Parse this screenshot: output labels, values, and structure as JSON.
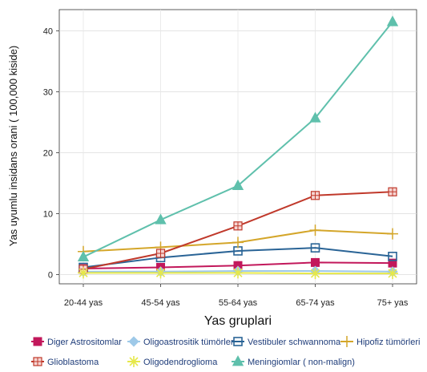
{
  "chart_data": {
    "type": "line",
    "title": "",
    "xlabel": "Yas gruplari",
    "ylabel": "Yas uyumlu insidans orani ( 100,000 kiside)",
    "categories": [
      "20-44 yas",
      "45-54 yas",
      "55-64 yas",
      "65-74 yas",
      "75+ yas"
    ],
    "y_ticks": [
      0,
      10,
      20,
      30,
      40
    ],
    "ylim": [
      -1.5,
      43.5
    ],
    "grid": true,
    "legend_position": "bottom",
    "series": [
      {
        "name": "Diger Astrositomlar",
        "color": "#c2185b",
        "marker": "square-filled",
        "values": [
          1.0,
          1.2,
          1.5,
          2.0,
          1.9
        ]
      },
      {
        "name": "Oligoastrositik tümörler",
        "color": "#9ec9e8",
        "marker": "diamond",
        "values": [
          0.5,
          0.5,
          0.6,
          0.6,
          0.5
        ]
      },
      {
        "name": "Vestibuler schwannoma",
        "color": "#2a6496",
        "marker": "square-open",
        "values": [
          1.2,
          2.8,
          3.9,
          4.4,
          3.0
        ]
      },
      {
        "name": "Hipofiz tümörleri",
        "color": "#d4a62a",
        "marker": "plus",
        "values": [
          3.8,
          4.5,
          5.3,
          7.3,
          6.7
        ]
      },
      {
        "name": "Glioblastoma",
        "color": "#c0392b",
        "marker": "square-cross",
        "values": [
          0.9,
          3.5,
          8.0,
          13.0,
          13.6
        ]
      },
      {
        "name": "Oligodendroglioma",
        "color": "#e6e84a",
        "marker": "asterisk",
        "values": [
          0.3,
          0.3,
          0.3,
          0.2,
          0.2
        ]
      },
      {
        "name": "Meningiomlar ( non-malign)",
        "color": "#5fc0ac",
        "marker": "triangle",
        "values": [
          2.9,
          9.0,
          14.6,
          25.7,
          41.5
        ]
      }
    ]
  }
}
